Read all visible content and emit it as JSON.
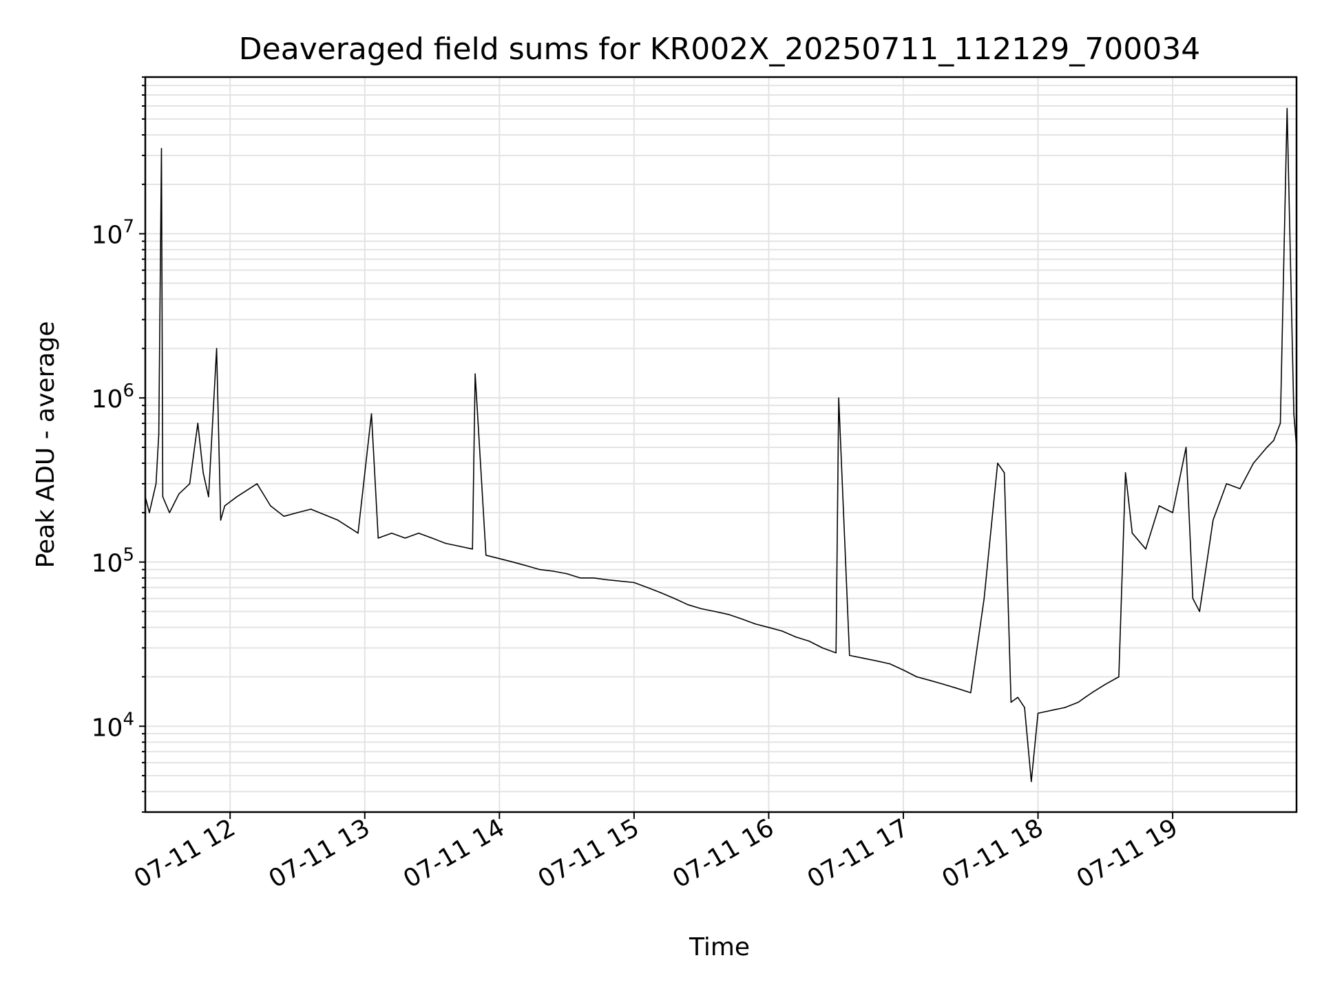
{
  "chart_data": {
    "type": "line",
    "title": "Deaveraged field sums for KR002X_20250711_112129_700034",
    "xlabel": "Time",
    "ylabel": "Peak ADU - average",
    "y_scale": "log",
    "ylim": [
      3000,
      90000000
    ],
    "x_unit": "hours on 07-11",
    "xlim": [
      11.37,
      19.92
    ],
    "grid": true,
    "line_color": "#000000",
    "grid_color": "#e3e3e3",
    "x_ticks": [
      {
        "value": 12,
        "label": "07-11 12"
      },
      {
        "value": 13,
        "label": "07-11 13"
      },
      {
        "value": 14,
        "label": "07-11 14"
      },
      {
        "value": 15,
        "label": "07-11 15"
      },
      {
        "value": 16,
        "label": "07-11 16"
      },
      {
        "value": 17,
        "label": "07-11 17"
      },
      {
        "value": 18,
        "label": "07-11 18"
      },
      {
        "value": 19,
        "label": "07-11 19"
      }
    ],
    "y_ticks": [
      {
        "value": 10000,
        "base": "10",
        "exp": "4"
      },
      {
        "value": 100000,
        "base": "10",
        "exp": "5"
      },
      {
        "value": 1000000,
        "base": "10",
        "exp": "6"
      },
      {
        "value": 10000000,
        "base": "10",
        "exp": "7"
      }
    ],
    "series": [
      {
        "x": [
          11.37,
          11.4,
          11.45,
          11.47,
          11.49,
          11.5,
          11.55,
          11.62,
          11.7,
          11.76,
          11.8,
          11.84,
          11.9,
          11.93,
          11.96,
          12.05,
          12.2,
          12.3,
          12.4,
          12.5,
          12.6,
          12.8,
          12.95,
          13.05,
          13.1,
          13.2,
          13.3,
          13.4,
          13.5,
          13.6,
          13.7,
          13.8,
          13.82,
          13.9,
          14.0,
          14.1,
          14.2,
          14.3,
          14.4,
          14.5,
          14.6,
          14.7,
          14.8,
          15.0,
          15.1,
          15.2,
          15.3,
          15.4,
          15.5,
          15.6,
          15.7,
          15.8,
          15.9,
          16.0,
          16.1,
          16.2,
          16.3,
          16.4,
          16.5,
          16.52,
          16.6,
          16.7,
          16.8,
          16.9,
          17.0,
          17.1,
          17.2,
          17.3,
          17.4,
          17.5,
          17.6,
          17.7,
          17.75,
          17.8,
          17.85,
          17.9,
          17.95,
          18.0,
          18.1,
          18.2,
          18.3,
          18.35,
          18.4,
          18.5,
          18.6,
          18.65,
          18.7,
          18.8,
          18.9,
          19.0,
          19.1,
          19.15,
          19.2,
          19.3,
          19.4,
          19.5,
          19.6,
          19.7,
          19.75,
          19.8,
          19.85,
          19.9,
          19.92
        ],
        "y": [
          250000,
          200000,
          300000,
          600000,
          33000000,
          250000,
          200000,
          260000,
          300000,
          700000,
          350000,
          250000,
          2000000,
          180000,
          220000,
          250000,
          300000,
          220000,
          190000,
          200000,
          210000,
          180000,
          150000,
          800000,
          140000,
          150000,
          140000,
          150000,
          140000,
          130000,
          125000,
          120000,
          1400000,
          110000,
          105000,
          100000,
          95000,
          90000,
          88000,
          85000,
          80000,
          80000,
          78000,
          75000,
          70000,
          65000,
          60000,
          55000,
          52000,
          50000,
          48000,
          45000,
          42000,
          40000,
          38000,
          35000,
          33000,
          30000,
          28000,
          1000000,
          27000,
          26000,
          25000,
          24000,
          22000,
          20000,
          19000,
          18000,
          17000,
          16000,
          60000,
          400000,
          350000,
          14000,
          15000,
          13000,
          4600,
          12000,
          12500,
          13000,
          14000,
          15000,
          16000,
          18000,
          20000,
          350000,
          150000,
          120000,
          220000,
          200000,
          500000,
          60000,
          50000,
          180000,
          300000,
          280000,
          400000,
          500000,
          550000,
          700000,
          58000000,
          800000,
          500000
        ]
      }
    ]
  }
}
